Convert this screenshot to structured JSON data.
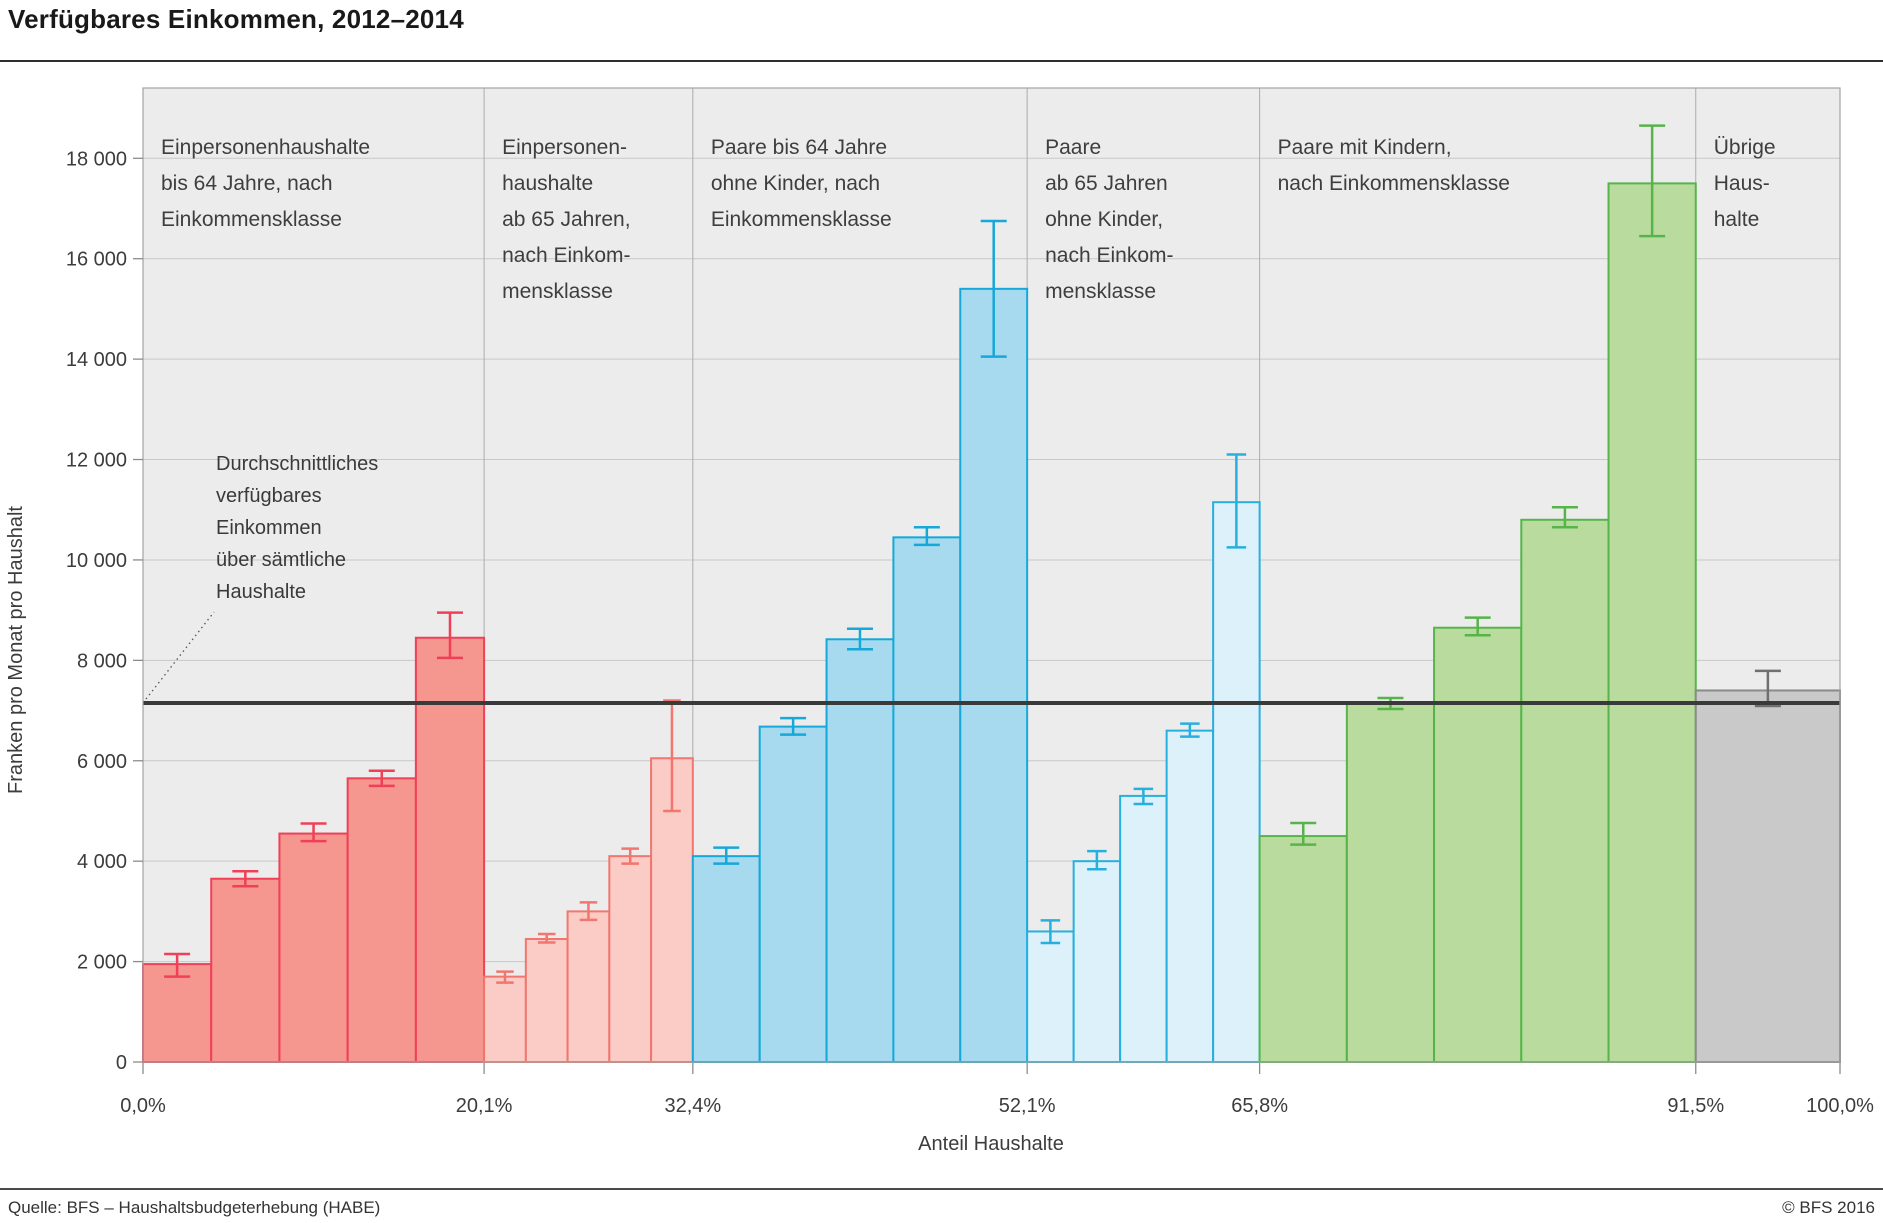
{
  "page": {
    "title": "Verfügbares Einkommen, 2012–2014"
  },
  "footer": {
    "source": "Quelle: BFS – Haushaltsbudgeterhebung (HABE)",
    "copyright": "© BFS 2016"
  },
  "chart_data": {
    "type": "bar",
    "title": "Verfügbares Einkommen, 2012–2014",
    "xlabel": "Anteil Haushalte",
    "ylabel": "Franken pro Monat pro Haushalt",
    "ylim": [
      0,
      19400
    ],
    "grid": true,
    "y_ticks": [
      {
        "value": 0,
        "label": "0"
      },
      {
        "value": 2000,
        "label": "2 000"
      },
      {
        "value": 4000,
        "label": "4 000"
      },
      {
        "value": 6000,
        "label": "6 000"
      },
      {
        "value": 8000,
        "label": "8 000"
      },
      {
        "value": 10000,
        "label": "10 000"
      },
      {
        "value": 12000,
        "label": "12 000"
      },
      {
        "value": 14000,
        "label": "14 000"
      },
      {
        "value": 16000,
        "label": "16 000"
      },
      {
        "value": 18000,
        "label": "18 000"
      }
    ],
    "x_ticks": [
      {
        "pct": 0.0,
        "label": "0,0%"
      },
      {
        "pct": 20.1,
        "label": "20,1%"
      },
      {
        "pct": 32.4,
        "label": "32,4%"
      },
      {
        "pct": 52.1,
        "label": "52,1%"
      },
      {
        "pct": 65.8,
        "label": "65,8%"
      },
      {
        "pct": 91.5,
        "label": "91,5%"
      },
      {
        "pct": 100.0,
        "label": "100,0%"
      }
    ],
    "mean_line": {
      "value": 7150,
      "label_lines": [
        "Durchschnittliches",
        "verfügbares",
        "Einkommen",
        "über sämtliche",
        "Haushalte"
      ]
    },
    "colors": {
      "plot_bg": "#ececec",
      "gridline": "#c8c8c8",
      "separator": "#acacac",
      "frame": "#a3a3a3",
      "tick": "#8c8c8c",
      "mean_line": "#3a3a3a"
    },
    "groups": [
      {
        "id": "einperson-bis64",
        "name": "Einpersonenhaushalte bis 64 Jahre, nach Einkommensklasse",
        "label_lines": [
          "Einpersonenhaushalte",
          "bis 64 Jahre, nach",
          "Einkommensklasse"
        ],
        "start_pct": 0.0,
        "end_pct": 20.1,
        "fill": "#f5968f",
        "stroke": "#ef4058",
        "bars": [
          {
            "value": 1950,
            "ci_low": 1700,
            "ci_high": 2150
          },
          {
            "value": 3650,
            "ci_low": 3500,
            "ci_high": 3800
          },
          {
            "value": 4550,
            "ci_low": 4400,
            "ci_high": 4750
          },
          {
            "value": 5650,
            "ci_low": 5500,
            "ci_high": 5800
          },
          {
            "value": 8450,
            "ci_low": 8050,
            "ci_high": 8950
          }
        ]
      },
      {
        "id": "einperson-ab65",
        "name": "Einpersonenhaushalte ab 65 Jahren, nach Einkommensklasse",
        "label_lines": [
          "Einpersonen-",
          "haushalte",
          "ab 65 Jahren,",
          "nach Einkom-",
          "mensklasse"
        ],
        "start_pct": 20.1,
        "end_pct": 32.4,
        "fill": "#faccc5",
        "stroke": "#f1766f",
        "bars": [
          {
            "value": 1700,
            "ci_low": 1580,
            "ci_high": 1800
          },
          {
            "value": 2450,
            "ci_low": 2380,
            "ci_high": 2550
          },
          {
            "value": 3000,
            "ci_low": 2830,
            "ci_high": 3180
          },
          {
            "value": 4100,
            "ci_low": 3950,
            "ci_high": 4250
          },
          {
            "value": 6050,
            "ci_low": 5000,
            "ci_high": 7200
          }
        ]
      },
      {
        "id": "paare-bis64",
        "name": "Paare bis 64 Jahre ohne Kinder, nach Einkommensklasse",
        "label_lines": [
          "Paare bis 64 Jahre",
          "ohne Kinder, nach",
          "Einkommensklasse"
        ],
        "start_pct": 32.4,
        "end_pct": 52.1,
        "fill": "#a7daee",
        "stroke": "#15a8d8",
        "bars": [
          {
            "value": 4100,
            "ci_low": 3950,
            "ci_high": 4270
          },
          {
            "value": 6680,
            "ci_low": 6520,
            "ci_high": 6850
          },
          {
            "value": 8420,
            "ci_low": 8220,
            "ci_high": 8630
          },
          {
            "value": 10450,
            "ci_low": 10300,
            "ci_high": 10650
          },
          {
            "value": 15400,
            "ci_low": 14050,
            "ci_high": 16750
          }
        ]
      },
      {
        "id": "paare-ab65",
        "name": "Paare ab 65 Jahren ohne Kinder, nach Einkommensklasse",
        "label_lines": [
          "Paare",
          "ab 65 Jahren",
          "ohne Kinder,",
          "nach Einkom-",
          "mensklasse"
        ],
        "start_pct": 52.1,
        "end_pct": 65.8,
        "fill": "#dcf1fa",
        "stroke": "#27afde",
        "bars": [
          {
            "value": 2600,
            "ci_low": 2370,
            "ci_high": 2820
          },
          {
            "value": 4000,
            "ci_low": 3840,
            "ci_high": 4200
          },
          {
            "value": 5300,
            "ci_low": 5140,
            "ci_high": 5440
          },
          {
            "value": 6600,
            "ci_low": 6480,
            "ci_high": 6740
          },
          {
            "value": 11150,
            "ci_low": 10250,
            "ci_high": 12100
          }
        ]
      },
      {
        "id": "paare-mit-kindern",
        "name": "Paare mit Kindern, nach Einkommensklasse",
        "label_lines": [
          "Paare mit Kindern,",
          "nach Einkommensklasse"
        ],
        "start_pct": 65.8,
        "end_pct": 91.5,
        "fill": "#b9dc9e",
        "stroke": "#56b44b",
        "bars": [
          {
            "value": 4500,
            "ci_low": 4330,
            "ci_high": 4760
          },
          {
            "value": 7150,
            "ci_low": 7030,
            "ci_high": 7250
          },
          {
            "value": 8650,
            "ci_low": 8500,
            "ci_high": 8850
          },
          {
            "value": 10800,
            "ci_low": 10650,
            "ci_high": 11050
          },
          {
            "value": 17500,
            "ci_low": 16450,
            "ci_high": 18650
          }
        ]
      },
      {
        "id": "uebrige",
        "name": "Übrige Haushalte",
        "label_lines": [
          "Übrige",
          "Haus-",
          "halte"
        ],
        "start_pct": 91.5,
        "end_pct": 100.0,
        "fill": "#c9c9c9",
        "stroke": "#8a8a8a",
        "err_stroke": "#6f6f6f",
        "bars": [
          {
            "value": 7400,
            "ci_low": 7090,
            "ci_high": 7790
          }
        ]
      }
    ]
  }
}
